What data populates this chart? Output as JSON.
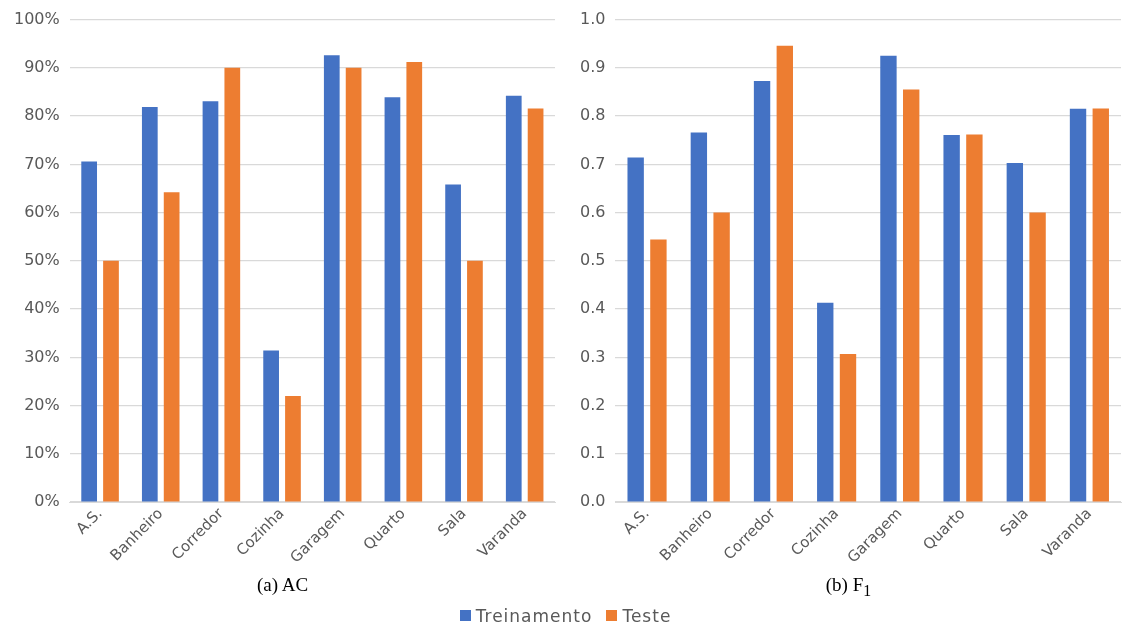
{
  "chart_data": [
    {
      "type": "bar",
      "annotations": [
        "(a) AC"
      ],
      "categories": [
        "A.S.",
        "Banheiro",
        "Corredor",
        "Cozinha",
        "Garagem",
        "Quarto",
        "Sala",
        "Varanda"
      ],
      "series": [
        {
          "name": "Treinamento",
          "color": "#4472c4",
          "values": [
            70.6,
            81.9,
            83.1,
            31.4,
            92.6,
            83.9,
            65.8,
            84.2
          ]
        },
        {
          "name": "Teste",
          "color": "#ed7d31",
          "values": [
            50,
            64.2,
            90,
            22,
            90,
            91.2,
            50,
            81.6
          ]
        }
      ],
      "ylim": [
        0,
        100
      ],
      "yticks": [
        {
          "value": 0,
          "label": "0%"
        },
        {
          "value": 10,
          "label": "10%"
        },
        {
          "value": 20,
          "label": "20%"
        },
        {
          "value": 30,
          "label": "30%"
        },
        {
          "value": 40,
          "label": "40%"
        },
        {
          "value": 50,
          "label": "50%"
        },
        {
          "value": 60,
          "label": "60%"
        },
        {
          "value": 70,
          "label": "70%"
        },
        {
          "value": 80,
          "label": "80%"
        },
        {
          "value": 90,
          "label": "90%"
        },
        {
          "value": 100,
          "label": "100%"
        }
      ],
      "grid": "y",
      "legend": "bottom"
    },
    {
      "type": "bar",
      "annotations": [
        "(b) F$_{1}$"
      ],
      "categories": [
        "A.S.",
        "Banheiro",
        "Corredor",
        "Cozinha",
        "Garagem",
        "Quarto",
        "Sala",
        "Varanda"
      ],
      "series": [
        {
          "color": "#4472c4",
          "values": [
            0.714,
            0.766,
            0.873,
            0.413,
            0.925,
            0.761,
            0.703,
            0.815
          ]
        },
        {
          "color": "#ed7d31",
          "values": [
            0.544,
            0.6,
            0.946,
            0.307,
            0.855,
            0.762,
            0.6,
            0.816
          ]
        }
      ],
      "ylim": [
        0,
        1
      ],
      "yticks": [
        {
          "value": 0,
          "label": "0.0"
        },
        0.1,
        0.2,
        0.3,
        0.4,
        0.5,
        0.6,
        0.7,
        0.8,
        0.9,
        {
          "value": 1,
          "label": "1.0"
        }
      ],
      "grid": "y"
    }
  ]
}
